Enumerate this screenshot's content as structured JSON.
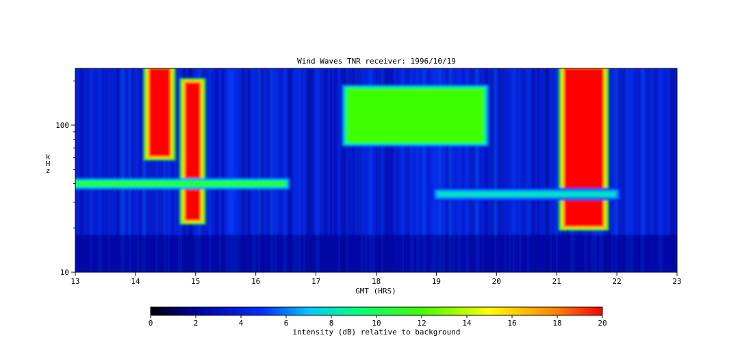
{
  "chart_data": {
    "type": "heatmap",
    "title": "Wind Waves TNR receiver: 1996/10/19",
    "xlabel": "GMT (HRS)",
    "ylabel": "kHz",
    "x_ticks": [
      "13",
      "14",
      "15",
      "16",
      "17",
      "18",
      "19",
      "20",
      "21",
      "22",
      "23"
    ],
    "xlim": [
      13,
      23
    ],
    "y_ticks": [
      "10",
      "100"
    ],
    "ylim": [
      10,
      250
    ],
    "y_scale": "log",
    "grid": false,
    "colorbar": {
      "label": "intensity (dB) relative to background",
      "ticks": [
        "0",
        "2",
        "4",
        "6",
        "8",
        "10",
        "12",
        "14",
        "16",
        "18",
        "20"
      ],
      "range": [
        0,
        20
      ],
      "colormap": [
        "#000000",
        "#0000a0",
        "#0030ff",
        "#00c8ff",
        "#00ff80",
        "#40ff00",
        "#ffff00",
        "#ff8000",
        "#ff0000"
      ],
      "placement": "bottom"
    },
    "features": [
      {
        "t_start": 14.2,
        "t_end": 14.6,
        "f_low": 60,
        "f_high": 250,
        "db": 20
      },
      {
        "t_start": 14.8,
        "t_end": 15.1,
        "f_low": 22,
        "f_high": 200,
        "db": 20
      },
      {
        "t_start": 21.1,
        "t_end": 21.8,
        "f_low": 20,
        "f_high": 250,
        "db": 20
      },
      {
        "t_start": 17.5,
        "t_end": 19.8,
        "f_low": 75,
        "f_high": 180,
        "db": 12
      },
      {
        "t_start": 13.0,
        "t_end": 16.5,
        "f_low": 38,
        "f_high": 42,
        "db": 11
      },
      {
        "t_start": 19.0,
        "t_end": 22.0,
        "f_low": 32,
        "f_high": 36,
        "db": 8
      }
    ]
  }
}
